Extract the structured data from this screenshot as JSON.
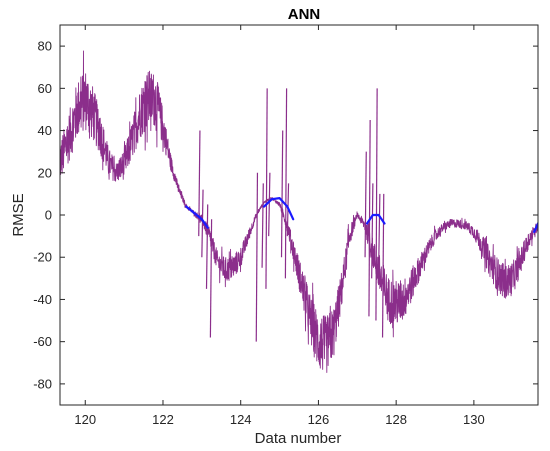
{
  "chart_data": {
    "type": "line",
    "title": "ANN",
    "xlabel": "Data number",
    "ylabel": "RMSE",
    "xlim": [
      119.35,
      131.65
    ],
    "ylim": [
      -90,
      90
    ],
    "xticks": [
      120,
      122,
      124,
      126,
      128,
      130
    ],
    "yticks": [
      -80,
      -60,
      -40,
      -20,
      0,
      20,
      40,
      60,
      80
    ],
    "grid": false,
    "legend": "none",
    "series": [
      {
        "color": "#8B2E8B",
        "style": "noisy",
        "x": [
          119.35,
          119.6,
          119.8,
          120.0,
          120.2,
          120.4,
          120.6,
          120.8,
          121.0,
          121.2,
          121.4,
          121.6,
          121.8,
          122.0,
          122.2,
          122.4,
          122.6,
          122.8,
          123.0,
          123.2,
          123.4,
          123.6,
          123.8,
          124.0,
          124.2,
          124.4,
          124.6,
          124.8,
          125.0,
          125.2,
          125.4,
          125.6,
          125.8,
          126.0,
          126.2,
          126.4,
          126.6,
          126.8,
          127.0,
          127.2,
          127.4,
          127.6,
          127.8,
          128.0,
          128.2,
          128.4,
          128.6,
          128.8,
          129.0,
          129.2,
          129.4,
          129.6,
          129.8,
          130.0,
          130.2,
          130.4,
          130.6,
          130.8,
          131.0,
          131.2,
          131.4,
          131.65
        ],
        "y": [
          25,
          38,
          50,
          55,
          48,
          38,
          25,
          20,
          24,
          35,
          48,
          55,
          55,
          42,
          25,
          12,
          4,
          1,
          -2,
          -10,
          -22,
          -26,
          -25,
          -20,
          -10,
          0,
          6,
          8,
          5,
          -5,
          -20,
          -35,
          -50,
          -60,
          -62,
          -55,
          -35,
          -10,
          0,
          -5,
          -18,
          -30,
          -40,
          -42,
          -40,
          -33,
          -25,
          -17,
          -10,
          -6,
          -4,
          -4,
          -5,
          -8,
          -14,
          -22,
          -28,
          -32,
          -30,
          -22,
          -12,
          -5
        ],
        "noise": [
          10,
          12,
          14,
          15,
          13,
          10,
          7,
          5,
          7,
          9,
          12,
          14,
          13,
          9,
          4,
          2,
          1,
          1,
          2,
          4,
          5,
          6,
          6,
          5,
          3,
          1,
          0.6,
          0.6,
          1,
          3,
          6,
          9,
          12,
          14,
          14,
          12,
          9,
          5,
          1,
          3,
          7,
          10,
          11,
          11,
          10,
          8,
          6,
          4,
          3,
          2,
          2,
          2,
          2,
          3,
          5,
          7,
          8,
          8,
          8,
          6,
          4,
          2
        ],
        "spikes": [
          {
            "x": 122.92,
            "y_min": -10,
            "y_max": 40
          },
          {
            "x": 123.0,
            "y_min": -20,
            "y_max": 12
          },
          {
            "x": 123.12,
            "y_min": -35,
            "y_max": 5
          },
          {
            "x": 123.22,
            "y_min": -58,
            "y_max": -2
          },
          {
            "x": 124.4,
            "y_min": -60,
            "y_max": 20
          },
          {
            "x": 124.55,
            "y_min": -25,
            "y_max": 15
          },
          {
            "x": 124.65,
            "y_min": -35,
            "y_max": 60
          },
          {
            "x": 124.72,
            "y_min": -10,
            "y_max": 20
          },
          {
            "x": 125.05,
            "y_min": -20,
            "y_max": 40
          },
          {
            "x": 125.15,
            "y_min": -30,
            "y_max": 60
          },
          {
            "x": 125.2,
            "y_min": -10,
            "y_max": 15
          },
          {
            "x": 127.2,
            "y_min": -20,
            "y_max": 30
          },
          {
            "x": 127.3,
            "y_min": -48,
            "y_max": 45
          },
          {
            "x": 127.37,
            "y_min": -30,
            "y_max": 15
          },
          {
            "x": 127.48,
            "y_min": -50,
            "y_max": 60
          },
          {
            "x": 127.55,
            "y_min": -25,
            "y_max": 10
          },
          {
            "x": 127.65,
            "y_min": -58,
            "y_max": 10
          }
        ]
      },
      {
        "color": "#1a1aff",
        "style": "segments",
        "x": [
          122.6,
          122.8,
          123.0,
          123.15,
          124.4,
          124.6,
          124.8,
          125.0,
          125.2,
          125.35,
          127.1,
          127.25,
          127.4,
          127.55,
          127.7,
          131.45,
          131.55,
          131.65
        ],
        "y": [
          4,
          1,
          -2,
          -6,
          null,
          4,
          7.5,
          8,
          4,
          -2,
          null,
          -4,
          0,
          0,
          -4,
          null,
          -8,
          -4
        ]
      }
    ]
  }
}
